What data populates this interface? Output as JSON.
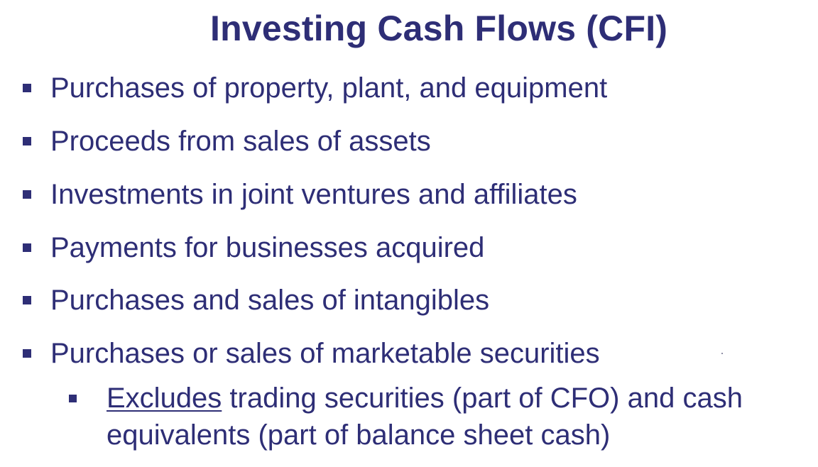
{
  "slide": {
    "title": "Investing Cash Flows (CFI)",
    "bullets": [
      "Purchases of property, plant, and equipment",
      "Proceeds from sales of assets",
      "Investments in joint ventures and affiliates",
      "Payments for businesses acquired",
      "Purchases and sales of intangibles",
      "Purchases or sales of marketable securities"
    ],
    "sub_bullet": {
      "emphasis": "Excludes",
      "line1_rest": " trading securities (part of CFO) and cash",
      "line2": "equivalents (part of balance sheet cash)"
    }
  },
  "colors": {
    "text": "#2e2e76",
    "background": "#ffffff"
  }
}
